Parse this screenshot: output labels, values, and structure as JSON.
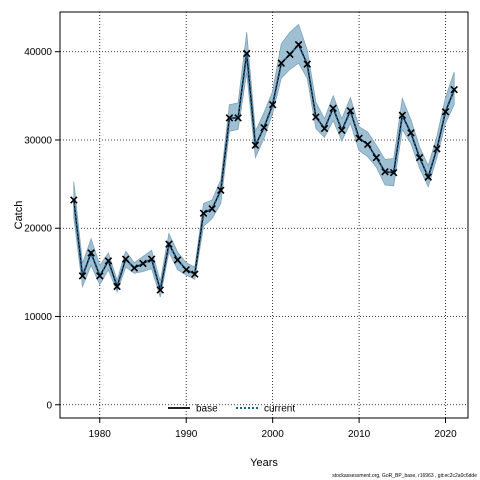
{
  "chart_data": {
    "type": "line",
    "xlabel": "Years",
    "ylabel": "Catch",
    "xlim": [
      1975.4,
      2022.6
    ],
    "ylim": [
      -1500,
      44500
    ],
    "x_ticks": [
      1980,
      1990,
      2000,
      2010,
      2020
    ],
    "y_ticks": [
      0,
      10000,
      20000,
      30000,
      40000
    ],
    "grid": true,
    "legend_position": "bottom",
    "legend": [
      {
        "label": "base",
        "style": "solid",
        "color": "#000000"
      },
      {
        "label": "current",
        "style": "dotted",
        "color": "#1f5f8b"
      }
    ],
    "band_color": "#9fbfd3",
    "band_edge_color": "#7fa3ba",
    "marker": "x",
    "footer": "stockassessment.org, GoR_BP_base, r16963 , git:ec2c2a0c6dde",
    "x": [
      1977,
      1978,
      1979,
      1980,
      1981,
      1982,
      1983,
      1984,
      1985,
      1986,
      1987,
      1988,
      1989,
      1990,
      1991,
      1992,
      1993,
      1994,
      1995,
      1996,
      1997,
      1998,
      1999,
      2000,
      2001,
      2002,
      2003,
      2004,
      2005,
      2006,
      2007,
      2008,
      2009,
      2010,
      2011,
      2012,
      2013,
      2014,
      2015,
      2016,
      2017,
      2018,
      2019,
      2020,
      2021
    ],
    "series": [
      {
        "name": "base",
        "values": [
          23200,
          14600,
          17200,
          14600,
          16300,
          13400,
          16500,
          15500,
          16000,
          16500,
          13000,
          18200,
          16400,
          15300,
          14800,
          21700,
          22200,
          24300,
          32500,
          32500,
          39800,
          29400,
          31400,
          34000,
          38700,
          39700,
          40800,
          38600,
          32600,
          31300,
          33600,
          31100,
          33300,
          30200,
          29500,
          28000,
          26400,
          26300,
          32800,
          30800,
          28000,
          25800,
          29000,
          33200,
          35700
        ]
      },
      {
        "name": "current",
        "values": [
          23200,
          14600,
          17200,
          14600,
          16300,
          13400,
          16500,
          15500,
          16000,
          16500,
          13000,
          18200,
          16400,
          15300,
          14800,
          21700,
          22200,
          24300,
          32500,
          32500,
          39800,
          29400,
          31400,
          34000,
          38700,
          39700,
          40800,
          38600,
          32600,
          31300,
          33600,
          31100,
          33300,
          30200,
          29500,
          28000,
          26400,
          26300,
          32800,
          30800,
          28000,
          25800,
          29000,
          33200,
          35700
        ]
      }
    ],
    "band_low": [
      21200,
      13400,
      15800,
      13600,
      15300,
      12800,
      15600,
      14900,
      15100,
      15400,
      12200,
      17300,
      15300,
      14700,
      14200,
      20200,
      21100,
      22800,
      31000,
      31200,
      37600,
      28000,
      30200,
      33000,
      37000,
      38000,
      38700,
      37000,
      31300,
      30300,
      32200,
      29900,
      31900,
      28800,
      28100,
      26900,
      24900,
      24800,
      31200,
      29600,
      26800,
      24700,
      28000,
      31900,
      34000
    ],
    "band_high": [
      25300,
      16000,
      18800,
      15800,
      17200,
      14100,
      17400,
      16100,
      16800,
      17500,
      14000,
      19400,
      17300,
      16100,
      15600,
      22800,
      23200,
      25500,
      34000,
      34200,
      42200,
      31000,
      33100,
      35500,
      40900,
      42200,
      43100,
      40200,
      34300,
      32400,
      35000,
      32400,
      34800,
      31500,
      30900,
      29400,
      27800,
      27900,
      34700,
      32300,
      29200,
      27100,
      30400,
      34800,
      37700
    ]
  }
}
